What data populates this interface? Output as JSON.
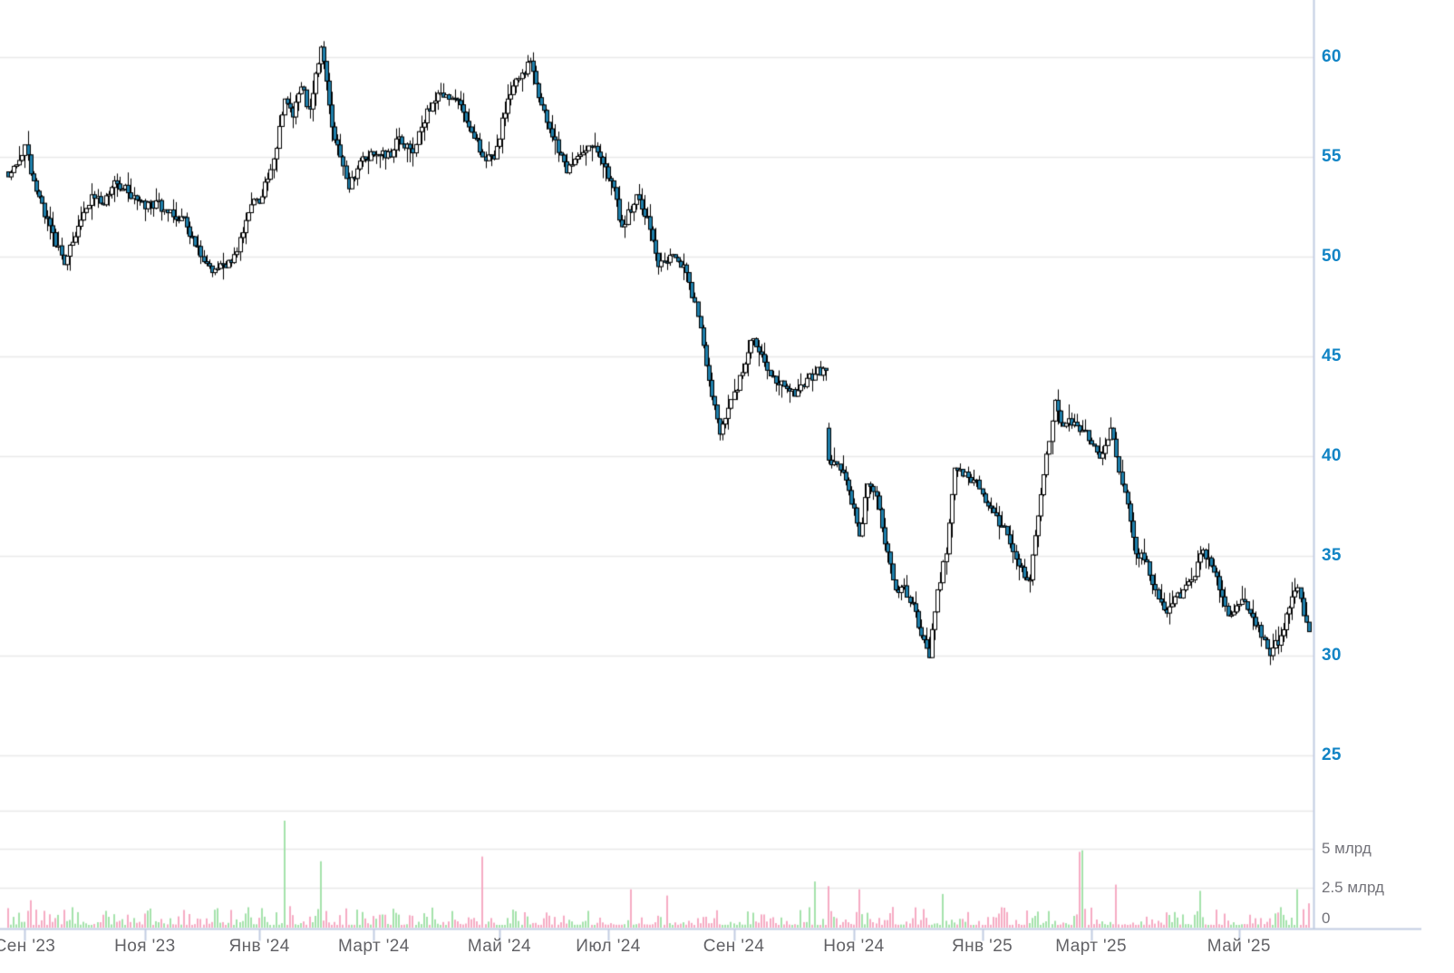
{
  "chart": {
    "background": "#ffffff",
    "grid_color": "#e9e9e9",
    "axis_line_color": "#c3cde3",
    "price_label_color": "#1184c5",
    "x_label_color": "#626266",
    "volume_label_color": "#73737a",
    "candle_up_fill": "#ffffff",
    "candle_down_fill": "#1e7fab",
    "candle_border": "#000000",
    "volume_up_color": "#a5e2ac",
    "volume_down_color": "#f6abc4"
  },
  "chart_data": {
    "type": "candlestick",
    "title": "",
    "grid": true,
    "sessions": 467,
    "price_axis": {
      "side": "right",
      "ticks": [
        60,
        55,
        50,
        45,
        40,
        35,
        30,
        25
      ],
      "ylim": [
        24.5,
        61.5
      ]
    },
    "volume_axis": {
      "side": "right",
      "ticks": [
        {
          "label": "5 млрд",
          "value": 5
        },
        {
          "label": "2.5 млрд",
          "value": 2.5
        },
        {
          "label": "0",
          "value": 0
        }
      ],
      "ylim_bln": [
        0,
        7.5
      ]
    },
    "x_ticks": [
      {
        "i": 6,
        "label": "Сен '23"
      },
      {
        "i": 49,
        "label": "Ноя '23"
      },
      {
        "i": 90,
        "label": "Янв '24"
      },
      {
        "i": 131,
        "label": "Март '24"
      },
      {
        "i": 176,
        "label": "Май '24"
      },
      {
        "i": 215,
        "label": "Июл '24"
      },
      {
        "i": 260,
        "label": "Сен '24"
      },
      {
        "i": 303,
        "label": "Ноя '24"
      },
      {
        "i": 349,
        "label": "Янв '25"
      },
      {
        "i": 388,
        "label": "Март '25"
      },
      {
        "i": 441,
        "label": "Май '25"
      }
    ],
    "price_range_visible": [
      29.3,
      60.8
    ],
    "price_path_anchors": [
      [
        0,
        54.0
      ],
      [
        3,
        54.6
      ],
      [
        6,
        55.6
      ],
      [
        9,
        53.8
      ],
      [
        13,
        52.0
      ],
      [
        16,
        51.2
      ],
      [
        20,
        49.6
      ],
      [
        24,
        51.0
      ],
      [
        30,
        53.1
      ],
      [
        34,
        52.6
      ],
      [
        38,
        53.8
      ],
      [
        43,
        53.2
      ],
      [
        49,
        52.4
      ],
      [
        53,
        52.8
      ],
      [
        57,
        52.2
      ],
      [
        62,
        52.0
      ],
      [
        66,
        51.0
      ],
      [
        69,
        50.0
      ],
      [
        73,
        49.2
      ],
      [
        77,
        49.6
      ],
      [
        80,
        49.7
      ],
      [
        84,
        51.2
      ],
      [
        87,
        52.6
      ],
      [
        91,
        53.0
      ],
      [
        95,
        54.9
      ],
      [
        99,
        57.9
      ],
      [
        102,
        57.0
      ],
      [
        105,
        58.5
      ],
      [
        108,
        57.4
      ],
      [
        112,
        60.5
      ],
      [
        114,
        58.8
      ],
      [
        116,
        56.5
      ],
      [
        119,
        55.0
      ],
      [
        122,
        53.4
      ],
      [
        125,
        54.4
      ],
      [
        127,
        55.0
      ],
      [
        131,
        55.1
      ],
      [
        134,
        55.3
      ],
      [
        137,
        55.0
      ],
      [
        140,
        56.0
      ],
      [
        145,
        55.2
      ],
      [
        150,
        57.4
      ],
      [
        153,
        57.8
      ],
      [
        155,
        58.2
      ],
      [
        160,
        57.9
      ],
      [
        165,
        56.5
      ],
      [
        170,
        55.0
      ],
      [
        174,
        54.9
      ],
      [
        179,
        57.9
      ],
      [
        184,
        59.2
      ],
      [
        187,
        59.8
      ],
      [
        191,
        57.6
      ],
      [
        195,
        56.0
      ],
      [
        200,
        54.2
      ],
      [
        205,
        55.1
      ],
      [
        209,
        55.5
      ],
      [
        214,
        54.5
      ],
      [
        216,
        53.8
      ],
      [
        220,
        51.5
      ],
      [
        225,
        53.1
      ],
      [
        229,
        52.0
      ],
      [
        233,
        49.5
      ],
      [
        238,
        50.1
      ],
      [
        243,
        49.2
      ],
      [
        247,
        47.0
      ],
      [
        251,
        43.8
      ],
      [
        255,
        41.1
      ],
      [
        258,
        42.4
      ],
      [
        261,
        43.3
      ],
      [
        266,
        45.8
      ],
      [
        270,
        45.1
      ],
      [
        274,
        44.0
      ],
      [
        278,
        43.5
      ],
      [
        282,
        43.0
      ],
      [
        286,
        43.9
      ],
      [
        289,
        44.1
      ],
      [
        292,
        44.4
      ],
      [
        293,
        44.3
      ],
      [
        294,
        39.8
      ],
      [
        297,
        39.6
      ],
      [
        300,
        38.8
      ],
      [
        303,
        37.4
      ],
      [
        305,
        36.0
      ],
      [
        308,
        38.6
      ],
      [
        311,
        38.0
      ],
      [
        314,
        35.6
      ],
      [
        318,
        33.3
      ],
      [
        321,
        33.5
      ],
      [
        324,
        32.6
      ],
      [
        327,
        31.0
      ],
      [
        330,
        29.9
      ],
      [
        333,
        33.3
      ],
      [
        336,
        35.1
      ],
      [
        339,
        39.4
      ],
      [
        343,
        39.2
      ],
      [
        346,
        38.8
      ],
      [
        349,
        38.1
      ],
      [
        352,
        37.4
      ],
      [
        356,
        36.5
      ],
      [
        359,
        35.6
      ],
      [
        362,
        34.5
      ],
      [
        366,
        33.8
      ],
      [
        369,
        37.0
      ],
      [
        372,
        40.1
      ],
      [
        375,
        42.8
      ],
      [
        378,
        41.5
      ],
      [
        382,
        41.7
      ],
      [
        385,
        41.3
      ],
      [
        388,
        40.6
      ],
      [
        391,
        39.9
      ],
      [
        395,
        41.4
      ],
      [
        398,
        39.2
      ],
      [
        401,
        37.6
      ],
      [
        404,
        35.1
      ],
      [
        408,
        34.7
      ],
      [
        411,
        33.3
      ],
      [
        414,
        32.3
      ],
      [
        417,
        32.6
      ],
      [
        421,
        33.3
      ],
      [
        424,
        33.8
      ],
      [
        427,
        35.1
      ],
      [
        430,
        34.9
      ],
      [
        434,
        33.3
      ],
      [
        437,
        32.0
      ],
      [
        440,
        32.5
      ],
      [
        443,
        32.7
      ],
      [
        447,
        31.5
      ],
      [
        450,
        30.8
      ],
      [
        452,
        30.0
      ],
      [
        456,
        31.0
      ],
      [
        459,
        32.4
      ],
      [
        462,
        33.4
      ],
      [
        464,
        32.0
      ],
      [
        466,
        31.2
      ]
    ],
    "gap_down": {
      "index": 294,
      "open": 41.4,
      "close": 39.8
    },
    "volume_base_bln": [
      0.1,
      1.6
    ],
    "volume_spikes_bln": [
      [
        8,
        1.7
      ],
      [
        99,
        6.8
      ],
      [
        112,
        4.2
      ],
      [
        170,
        4.5
      ],
      [
        223,
        2.4
      ],
      [
        236,
        2.0
      ],
      [
        289,
        2.9
      ],
      [
        294,
        2.6
      ],
      [
        305,
        2.4
      ],
      [
        335,
        2.1
      ],
      [
        384,
        4.8
      ],
      [
        385,
        4.9
      ],
      [
        397,
        2.7
      ],
      [
        427,
        2.3
      ],
      [
        462,
        2.4
      ],
      [
        466,
        1.5
      ]
    ]
  }
}
